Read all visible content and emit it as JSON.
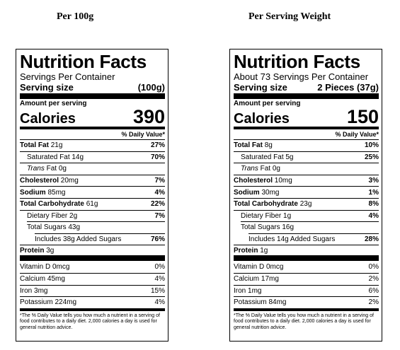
{
  "headings": {
    "left": "Per 100g",
    "right": "Per Serving Weight"
  },
  "labels": [
    {
      "title": "Nutrition Facts",
      "servings": "Servings Per Container",
      "serving_size_label": "Serving size",
      "serving_size_value": "(100g)",
      "amount_per_serving": "Amount per serving",
      "calories_label": "Calories",
      "calories_value": "390",
      "daily_value_header": "% Daily Value*",
      "total_fat": {
        "label": "Total Fat",
        "amount": "21g",
        "pct": "27%"
      },
      "saturated_fat": {
        "label": "Saturated Fat 14g",
        "pct": "70%"
      },
      "trans_fat": {
        "label_italic": "Trans",
        "label_rest": " Fat 0g"
      },
      "cholesterol": {
        "label": "Cholesterol",
        "amount": "20mg",
        "pct": "7%"
      },
      "sodium": {
        "label": "Sodium",
        "amount": "85mg",
        "pct": "4%"
      },
      "total_carb": {
        "label": "Total Carbohydrate",
        "amount": "61g",
        "pct": "22%"
      },
      "dietary_fiber": {
        "label": "Dietary Fiber 2g",
        "pct": "7%"
      },
      "total_sugars": {
        "label": "Total Sugars 43g"
      },
      "added_sugars": {
        "label": "Includes 38g Added Sugars",
        "pct": "76%"
      },
      "protein": {
        "label": "Protein",
        "amount": "3g"
      },
      "vitamin_d": {
        "label": "Vitamin D 0mcg",
        "pct": "0%"
      },
      "calcium": {
        "label": "Calcium 45mg",
        "pct": "4%"
      },
      "iron": {
        "label": "Iron 3mg",
        "pct": "15%"
      },
      "potassium": {
        "label": "Potassium 224mg",
        "pct": "4%"
      },
      "footnote": "*The % Daily Value tells you how much a nutrient in a serving of food contributes to a daily diet. 2,000 calories a day is used for general nutrition advice."
    },
    {
      "title": "Nutrition Facts",
      "servings": "About 73 Servings Per Container",
      "serving_size_label": "Serving size",
      "serving_size_value": "2 Pieces (37g)",
      "amount_per_serving": "Amount per serving",
      "calories_label": "Calories",
      "calories_value": "150",
      "daily_value_header": "% Daily Value*",
      "total_fat": {
        "label": "Total Fat",
        "amount": "8g",
        "pct": "10%"
      },
      "saturated_fat": {
        "label": "Saturated Fat 5g",
        "pct": "25%"
      },
      "trans_fat": {
        "label_italic": "Trans",
        "label_rest": " Fat 0g"
      },
      "cholesterol": {
        "label": "Cholesterol",
        "amount": "10mg",
        "pct": "3%"
      },
      "sodium": {
        "label": "Sodium",
        "amount": "30mg",
        "pct": "1%"
      },
      "total_carb": {
        "label": "Total Carbohydrate",
        "amount": "23g",
        "pct": "8%"
      },
      "dietary_fiber": {
        "label": "Dietary Fiber 1g",
        "pct": "4%"
      },
      "total_sugars": {
        "label": "Total Sugars 16g"
      },
      "added_sugars": {
        "label": "Includes 14g Added Sugars",
        "pct": "28%"
      },
      "protein": {
        "label": "Protein",
        "amount": "1g"
      },
      "vitamin_d": {
        "label": "Vitamin D 0mcg",
        "pct": "0%"
      },
      "calcium": {
        "label": "Calcium 17mg",
        "pct": "2%"
      },
      "iron": {
        "label": "Iron 1mg",
        "pct": "6%"
      },
      "potassium": {
        "label": "Potassium 84mg",
        "pct": "2%"
      },
      "footnote": "*The % Daily Value tells you how much a nutrient in a serving of food contributes to a daily diet. 2,000 calories a day is used for general nutrition advice."
    }
  ]
}
